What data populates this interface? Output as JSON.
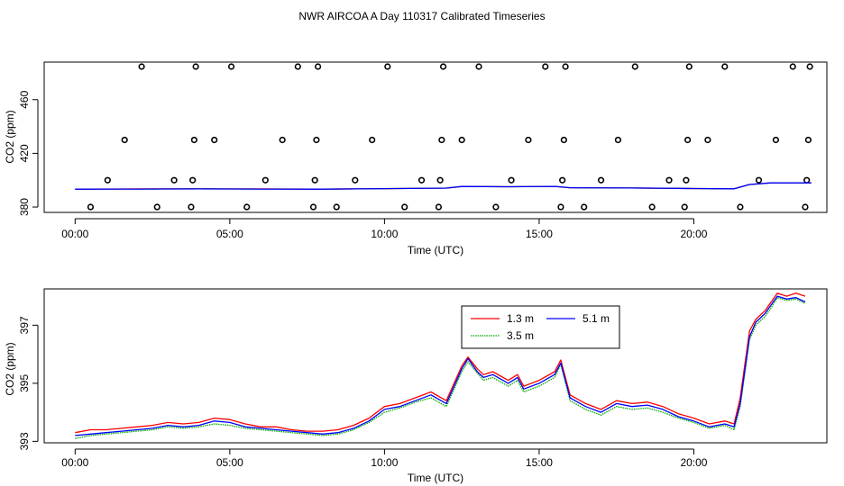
{
  "title": "NWR AIRCOA A  Day 110317  Calibrated Timeseries",
  "chart_data": [
    {
      "type": "scatter",
      "xlabel": "Time (UTC)",
      "ylabel": "CO2 (ppm)",
      "xlim": [
        -1,
        24.3
      ],
      "ylim": [
        376,
        488
      ],
      "x_ticks": [
        0,
        5,
        10,
        15,
        20
      ],
      "x_tick_labels": [
        "00:00",
        "05:00",
        "10:00",
        "15:00",
        "20:00"
      ],
      "y_ticks": [
        380,
        420,
        460
      ],
      "y_tick_labels": [
        "380",
        "420",
        "460"
      ],
      "points": {
        "x": [
          0.5,
          1.05,
          1.6,
          2.15,
          2.65,
          3.2,
          3.75,
          3.8,
          3.85,
          3.9,
          4.5,
          5.05,
          5.55,
          6.15,
          6.7,
          7.2,
          7.7,
          7.75,
          7.8,
          7.85,
          8.45,
          9.05,
          9.6,
          10.1,
          10.65,
          11.2,
          11.75,
          11.8,
          11.85,
          11.9,
          12.5,
          13.05,
          13.6,
          14.1,
          14.65,
          15.2,
          15.7,
          15.75,
          15.8,
          15.85,
          16.45,
          17.0,
          17.55,
          18.1,
          18.65,
          19.2,
          19.7,
          19.75,
          19.8,
          19.85,
          20.45,
          21.0,
          21.5,
          22.1,
          22.65,
          23.2,
          23.6,
          23.65,
          23.7,
          23.75
        ],
        "y": [
          380,
          400,
          430,
          490,
          380,
          400,
          380,
          400,
          430,
          490,
          430,
          490,
          380,
          400,
          430,
          490,
          380,
          400,
          430,
          490,
          380,
          400,
          430,
          490,
          380,
          400,
          380,
          400,
          430,
          490,
          430,
          490,
          380,
          400,
          430,
          490,
          380,
          400,
          430,
          490,
          380,
          400,
          430,
          490,
          380,
          400,
          380,
          400,
          430,
          490,
          430,
          490,
          380,
          400,
          430,
          490,
          380,
          400,
          430,
          490
        ]
      },
      "series": [
        {
          "name": "1.3 m",
          "color": "#ff0000",
          "x": [
            0,
            2,
            4,
            6,
            8,
            10,
            12,
            12.5,
            14,
            15.5,
            16,
            18,
            20,
            21.3,
            21.8,
            22.5,
            23.8
          ],
          "values": [
            393.3,
            393.5,
            393.6,
            393.5,
            393.4,
            393.7,
            394.1,
            395.3,
            395.1,
            395.4,
            394.4,
            394.2,
            393.8,
            393.6,
            396.8,
            398.0,
            398.0
          ]
        },
        {
          "name": "3.5 m",
          "color": "#00aa00",
          "x": [
            0,
            2,
            4,
            6,
            8,
            10,
            12,
            12.5,
            14,
            15.5,
            16,
            18,
            20,
            21.3,
            21.8,
            22.5,
            23.8
          ],
          "values": [
            393.3,
            393.4,
            393.5,
            393.4,
            393.3,
            393.7,
            394.1,
            395.3,
            395.1,
            395.4,
            394.4,
            394.2,
            393.8,
            393.6,
            396.8,
            398.0,
            398.0
          ]
        },
        {
          "name": "5.1 m",
          "color": "#0000ff",
          "x": [
            0,
            2,
            4,
            6,
            8,
            10,
            12,
            12.5,
            14,
            15.5,
            16,
            18,
            20,
            21.3,
            21.8,
            22.5,
            23.8
          ],
          "values": [
            393.3,
            393.4,
            393.5,
            393.4,
            393.3,
            393.7,
            394.1,
            395.3,
            395.1,
            395.4,
            394.4,
            394.2,
            393.8,
            393.6,
            396.8,
            398.0,
            398.0
          ]
        }
      ]
    },
    {
      "type": "line",
      "xlabel": "Time (UTC)",
      "ylabel": "CO2 (ppm)",
      "xlim": [
        -1,
        24.3
      ],
      "ylim": [
        392.95,
        398.25
      ],
      "x_ticks": [
        0,
        5,
        10,
        15,
        20
      ],
      "x_tick_labels": [
        "00:00",
        "05:00",
        "10:00",
        "15:00",
        "20:00"
      ],
      "y_ticks": [
        393,
        395,
        397
      ],
      "y_tick_labels": [
        "393",
        "395",
        "397"
      ],
      "legend": {
        "position": "top-center",
        "entries": [
          "1.3 m",
          "3.5 m",
          "5.1 m"
        ]
      },
      "series": [
        {
          "name": "1.3 m",
          "color": "#ff0000",
          "x": [
            0,
            0.5,
            1,
            1.5,
            2,
            2.5,
            3,
            3.5,
            4,
            4.5,
            5,
            5.5,
            6,
            6.5,
            7,
            7.5,
            8,
            8.5,
            9,
            9.5,
            10,
            10.5,
            11,
            11.5,
            12,
            12.5,
            12.7,
            13,
            13.2,
            13.5,
            14,
            14.3,
            14.5,
            15,
            15.5,
            15.7,
            16,
            16.5,
            17,
            17.5,
            18,
            18.5,
            19,
            19.5,
            20,
            20.5,
            21,
            21.3,
            21.5,
            21.8,
            22,
            22.3,
            22.5,
            22.7,
            23,
            23.3,
            23.6
          ],
          "values": [
            393.3,
            393.4,
            393.4,
            393.45,
            393.5,
            393.55,
            393.65,
            393.6,
            393.65,
            393.8,
            393.75,
            393.6,
            393.5,
            393.5,
            393.4,
            393.35,
            393.35,
            393.4,
            393.55,
            393.8,
            394.2,
            394.3,
            394.5,
            394.7,
            394.4,
            395.6,
            395.9,
            395.5,
            395.3,
            395.4,
            395.1,
            395.3,
            394.9,
            395.1,
            395.4,
            395.8,
            394.6,
            394.3,
            394.1,
            394.4,
            394.3,
            394.35,
            394.2,
            393.95,
            393.8,
            393.6,
            393.7,
            393.6,
            394.5,
            396.8,
            397.2,
            397.5,
            397.8,
            398.1,
            398.0,
            398.1,
            398.0
          ]
        },
        {
          "name": "3.5 m",
          "color": "#00aa00",
          "x": [
            0,
            0.5,
            1,
            1.5,
            2,
            2.5,
            3,
            3.5,
            4,
            4.5,
            5,
            5.5,
            6,
            6.5,
            7,
            7.5,
            8,
            8.5,
            9,
            9.5,
            10,
            10.5,
            11,
            11.5,
            12,
            12.5,
            12.7,
            13,
            13.2,
            13.5,
            14,
            14.3,
            14.5,
            15,
            15.5,
            15.7,
            16,
            16.5,
            17,
            17.5,
            18,
            18.5,
            19,
            19.5,
            20,
            20.5,
            21,
            21.3,
            21.5,
            21.8,
            22,
            22.3,
            22.5,
            22.7,
            23,
            23.3,
            23.6
          ],
          "values": [
            393.1,
            393.2,
            393.25,
            393.3,
            393.35,
            393.4,
            393.5,
            393.45,
            393.5,
            393.6,
            393.55,
            393.45,
            393.4,
            393.35,
            393.3,
            393.25,
            393.2,
            393.25,
            393.4,
            393.65,
            394.0,
            394.15,
            394.35,
            394.5,
            394.2,
            395.4,
            395.75,
            395.35,
            395.1,
            395.2,
            394.9,
            395.1,
            394.7,
            394.9,
            395.2,
            395.65,
            394.4,
            394.1,
            393.9,
            394.2,
            394.1,
            394.15,
            394.0,
            393.8,
            393.65,
            393.45,
            393.55,
            393.4,
            394.2,
            396.5,
            397.0,
            397.3,
            397.6,
            397.95,
            397.85,
            397.9,
            397.75
          ]
        },
        {
          "name": "5.1 m",
          "color": "#0000ff",
          "x": [
            0,
            0.5,
            1,
            1.5,
            2,
            2.5,
            3,
            3.5,
            4,
            4.5,
            5,
            5.5,
            6,
            6.5,
            7,
            7.5,
            8,
            8.5,
            9,
            9.5,
            10,
            10.5,
            11,
            11.5,
            12,
            12.5,
            12.7,
            13,
            13.2,
            13.5,
            14,
            14.3,
            14.5,
            15,
            15.5,
            15.7,
            16,
            16.5,
            17,
            17.5,
            18,
            18.5,
            19,
            19.5,
            20,
            20.5,
            21,
            21.3,
            21.5,
            21.8,
            22,
            22.3,
            22.5,
            22.7,
            23,
            23.3,
            23.6
          ],
          "values": [
            393.2,
            393.25,
            393.3,
            393.35,
            393.4,
            393.45,
            393.55,
            393.5,
            393.55,
            393.7,
            393.65,
            393.5,
            393.45,
            393.4,
            393.35,
            393.3,
            393.25,
            393.3,
            393.45,
            393.7,
            394.1,
            394.2,
            394.4,
            394.6,
            394.3,
            395.5,
            395.85,
            395.4,
            395.2,
            395.3,
            395.0,
            395.2,
            394.8,
            395.0,
            395.3,
            395.7,
            394.5,
            394.2,
            394.0,
            394.3,
            394.2,
            394.25,
            394.1,
            393.85,
            393.7,
            393.5,
            393.6,
            393.5,
            394.3,
            396.6,
            397.1,
            397.4,
            397.7,
            398.0,
            397.9,
            397.95,
            397.8
          ]
        }
      ]
    }
  ]
}
